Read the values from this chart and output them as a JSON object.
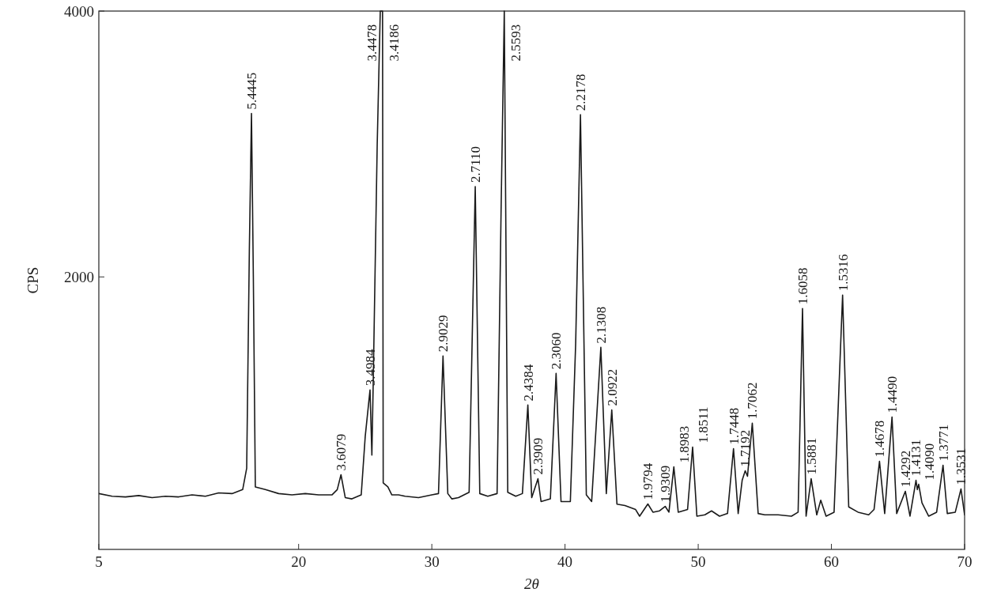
{
  "chart_data": {
    "type": "line",
    "xlabel": "2θ",
    "ylabel": "CPS",
    "xlim": [
      5,
      70
    ],
    "xticks": [
      5,
      20,
      30,
      40,
      50,
      60,
      70
    ],
    "ylim": [
      -50,
      4000
    ],
    "yticks": [
      2000,
      4000
    ],
    "grid": false,
    "marker": "none",
    "line_style": "solid",
    "series": [
      {
        "color": "#1a1a1a",
        "x": [
          5,
          6,
          7,
          8,
          9,
          10,
          11,
          12,
          13,
          14,
          15,
          15.8,
          16.1,
          16.3,
          16.46,
          16.6,
          16.75,
          17.5,
          18.5,
          19.5,
          20.5,
          21.5,
          22.5,
          22.9,
          23.18,
          23.5,
          24,
          24.7,
          25,
          25.36,
          25.5,
          25.6,
          25.9,
          26.13,
          26.3,
          26.35,
          26.7,
          27,
          27.5,
          28,
          29,
          30,
          30.5,
          30.84,
          31.2,
          31.5,
          32,
          32.8,
          33.26,
          33.6,
          34.2,
          34.9,
          35.2,
          35.44,
          35.7,
          36.3,
          36.8,
          37.21,
          37.5,
          37.97,
          38.2,
          38.9,
          39.33,
          39.7,
          40.4,
          40.8,
          41.16,
          41.6,
          42,
          42.69,
          43.1,
          43.51,
          43.9,
          44.5,
          45.3,
          45.6,
          46.22,
          46.6,
          47.1,
          47.52,
          47.8,
          48.17,
          48.5,
          49.2,
          49.58,
          49.9,
          50.5,
          51,
          51.6,
          52.2,
          52.65,
          53,
          53.3,
          53.53,
          53.7,
          54.06,
          54.5,
          55,
          56,
          57,
          57.5,
          57.83,
          58.1,
          58.48,
          58.9,
          59.2,
          59.6,
          60.2,
          60.84,
          61.3,
          62,
          62.8,
          63.2,
          63.61,
          64,
          64.55,
          64.9,
          65.55,
          65.9,
          66.35,
          66.45,
          66.55,
          66.8,
          67.3,
          67.9,
          68.38,
          68.7,
          69.3,
          69.73,
          70
        ],
        "values": [
          370,
          350,
          345,
          355,
          340,
          350,
          345,
          360,
          350,
          375,
          370,
          400,
          560,
          2200,
          3230,
          2000,
          420,
          400,
          370,
          360,
          370,
          360,
          360,
          400,
          512,
          340,
          330,
          360,
          800,
          1150,
          660,
          1200,
          3000,
          4000,
          4000,
          450,
          420,
          360,
          360,
          350,
          340,
          360,
          370,
          1405,
          370,
          330,
          340,
          380,
          2679,
          370,
          350,
          370,
          2500,
          4000,
          380,
          350,
          370,
          1036,
          340,
          482,
          310,
          330,
          1274,
          310,
          310,
          1500,
          3220,
          360,
          310,
          1470,
          369,
          1000,
          290,
          280,
          250,
          200,
          292,
          230,
          240,
          274,
          230,
          571,
          230,
          250,
          720,
          200,
          210,
          240,
          200,
          220,
          708,
          220,
          470,
          542,
          500,
          900,
          220,
          210,
          210,
          200,
          230,
          1762,
          200,
          482,
          210,
          320,
          200,
          230,
          1863,
          270,
          230,
          210,
          250,
          613,
          220,
          946,
          220,
          387,
          200,
          470,
          400,
          440,
          300,
          200,
          230,
          583,
          220,
          230,
          405,
          210
        ]
      }
    ],
    "annotations": [
      {
        "text": "5.4445",
        "x": 16.46,
        "y": 3230
      },
      {
        "text": "3.6079",
        "x": 23.18,
        "y": 512
      },
      {
        "text": "3.4984",
        "x": 25.36,
        "y": 1150
      },
      {
        "text": "3.4478",
        "x": 26.13,
        "y": 4000
      },
      {
        "text": "3.4186",
        "x": 26.3,
        "y": 4000
      },
      {
        "text": "2.9029",
        "x": 30.84,
        "y": 1405
      },
      {
        "text": "2.7110",
        "x": 33.26,
        "y": 2679
      },
      {
        "text": "2.5593",
        "x": 35.44,
        "y": 4000
      },
      {
        "text": "2.4384",
        "x": 37.21,
        "y": 1036
      },
      {
        "text": "2.3909",
        "x": 37.97,
        "y": 482
      },
      {
        "text": "2.3060",
        "x": 39.33,
        "y": 1274
      },
      {
        "text": "2.2178",
        "x": 41.16,
        "y": 3220
      },
      {
        "text": "2.1308",
        "x": 42.69,
        "y": 1470
      },
      {
        "text": "2.0922",
        "x": 43.51,
        "y": 1000
      },
      {
        "text": "1.9794",
        "x": 46.22,
        "y": 292
      },
      {
        "text": "1.9309",
        "x": 47.52,
        "y": 274
      },
      {
        "text": "1.8983",
        "x": 48.17,
        "y": 571
      },
      {
        "text": "1.8511",
        "x": 49.58,
        "y": 720
      },
      {
        "text": "1.7448",
        "x": 52.65,
        "y": 708
      },
      {
        "text": "1.7192",
        "x": 53.53,
        "y": 542
      },
      {
        "text": "1.7062",
        "x": 54.06,
        "y": 900
      },
      {
        "text": "1.6058",
        "x": 57.83,
        "y": 1762
      },
      {
        "text": "1.5881",
        "x": 58.48,
        "y": 482
      },
      {
        "text": "1.5316",
        "x": 60.84,
        "y": 1863
      },
      {
        "text": "1.4678",
        "x": 63.61,
        "y": 613
      },
      {
        "text": "1.4490",
        "x": 64.55,
        "y": 946
      },
      {
        "text": "1.4292",
        "x": 65.55,
        "y": 387
      },
      {
        "text": "1.4131",
        "x": 66.35,
        "y": 470
      },
      {
        "text": "1.4090",
        "x": 66.55,
        "y": 440
      },
      {
        "text": "1.3771",
        "x": 68.38,
        "y": 583
      },
      {
        "text": "1.3531",
        "x": 69.73,
        "y": 405
      }
    ]
  }
}
